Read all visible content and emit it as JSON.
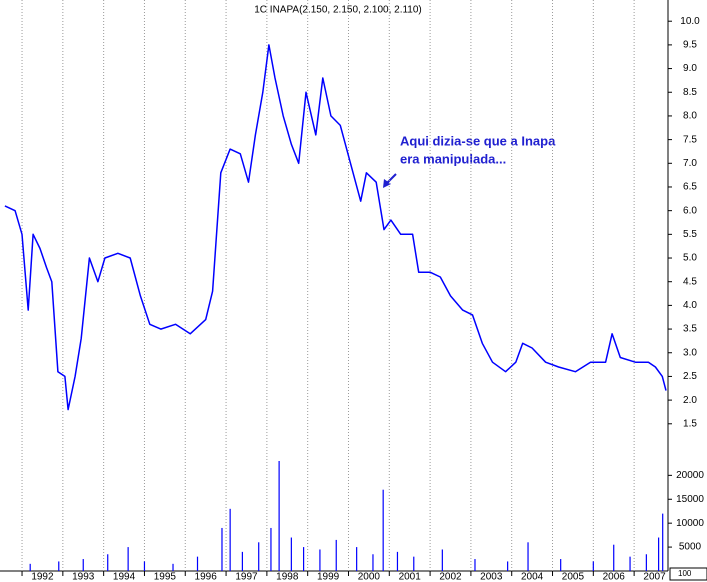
{
  "chart_data": [
    {
      "type": "line",
      "title": "1C INAPA(2.150, 2.150, 2.100, 2.110)",
      "annotation": [
        "Aqui dizia-se que a Inapa",
        "era manipulada..."
      ],
      "x": [
        1991.58,
        1991.83,
        1992.0,
        1992.15,
        1992.27,
        1992.44,
        1992.6,
        1992.73,
        1992.88,
        1993.05,
        1993.13,
        1993.3,
        1993.45,
        1993.65,
        1993.86,
        1994.03,
        1994.35,
        1994.65,
        1994.9,
        1995.13,
        1995.4,
        1995.76,
        1996.12,
        1996.5,
        1996.67,
        1996.87,
        1997.1,
        1997.35,
        1997.55,
        1997.72,
        1997.9,
        1998.05,
        1998.2,
        1998.4,
        1998.6,
        1998.78,
        1998.96,
        1999.2,
        1999.37,
        1999.57,
        1999.8,
        2000.05,
        2000.3,
        2000.44,
        2000.68,
        2000.87,
        2001.04,
        2001.28,
        2001.57,
        2001.72,
        2002.0,
        2002.25,
        2002.5,
        2002.8,
        2003.04,
        2003.28,
        2003.53,
        2003.85,
        2004.1,
        2004.27,
        2004.5,
        2004.83,
        2005.15,
        2005.56,
        2005.93,
        2006.3,
        2006.46,
        2006.66,
        2007.03,
        2007.35,
        2007.52,
        2007.69,
        2007.78
      ],
      "values": [
        6.1,
        6.0,
        5.5,
        3.9,
        5.5,
        5.2,
        4.8,
        4.5,
        2.6,
        2.5,
        1.8,
        2.5,
        3.3,
        5.0,
        4.5,
        5.0,
        5.1,
        5.0,
        4.2,
        3.6,
        3.5,
        3.6,
        3.4,
        3.7,
        4.3,
        6.8,
        7.3,
        7.2,
        6.6,
        7.6,
        8.5,
        9.5,
        8.8,
        8.0,
        7.4,
        7.0,
        8.5,
        7.6,
        8.8,
        8.0,
        7.8,
        7.0,
        6.2,
        6.8,
        6.6,
        5.6,
        5.8,
        5.5,
        5.5,
        4.7,
        4.7,
        4.6,
        4.2,
        3.9,
        3.8,
        3.2,
        2.8,
        2.6,
        2.8,
        3.2,
        3.1,
        2.8,
        2.7,
        2.6,
        2.8,
        2.8,
        3.4,
        2.9,
        2.8,
        2.8,
        2.7,
        2.5,
        2.2
      ],
      "color": "#0000ff",
      "xlim": [
        1991.46,
        2007.83
      ],
      "xticks": [
        1992,
        1993,
        1994,
        1995,
        1996,
        1997,
        1998,
        1999,
        2000,
        2001,
        2002,
        2003,
        2004,
        2005,
        2006,
        2007
      ],
      "ylim": [
        1.2,
        10.3
      ],
      "yticks": [
        {
          "value": 1.5,
          "label": "1.5"
        },
        {
          "value": 2,
          "label": "2.0"
        },
        {
          "value": 2.5,
          "label": "2.5"
        },
        {
          "value": 3,
          "label": "3.0"
        },
        {
          "value": 3.5,
          "label": "3.5"
        },
        {
          "value": 4,
          "label": "4.0"
        },
        {
          "value": 4.5,
          "label": "4.5"
        },
        {
          "value": 5,
          "label": "5.0"
        },
        {
          "value": 5.5,
          "label": "5.5"
        },
        {
          "value": 6,
          "label": "6.0"
        },
        {
          "value": 6.5,
          "label": "6.5"
        },
        {
          "value": 7,
          "label": "7.0"
        },
        {
          "value": 7.5,
          "label": "7.5"
        },
        {
          "value": 8,
          "label": "8.0"
        },
        {
          "value": 8.5,
          "label": "8.5"
        },
        {
          "value": 9,
          "label": "9.0"
        },
        {
          "value": 9.5,
          "label": "9.5"
        },
        {
          "value": 10,
          "label": "10.0"
        }
      ],
      "grid": true
    },
    {
      "type": "bar",
      "unit_label": "100",
      "x": [
        1992.2,
        1992.9,
        1993.5,
        1994.1,
        1994.6,
        1995.0,
        1995.7,
        1996.3,
        1996.9,
        1997.1,
        1997.4,
        1997.8,
        1998.1,
        1998.3,
        1998.6,
        1998.9,
        1999.3,
        1999.7,
        2000.2,
        2000.6,
        2000.85,
        2001.2,
        2001.6,
        2002.3,
        2003.1,
        2003.9,
        2004.4,
        2005.2,
        2006.0,
        2006.5,
        2006.9,
        2007.3,
        2007.6,
        2007.7
      ],
      "values": [
        1500,
        2000,
        2500,
        3500,
        5000,
        2000,
        1500,
        3000,
        9000,
        13000,
        4000,
        6000,
        9000,
        23000,
        7000,
        5000,
        4500,
        6500,
        5000,
        3500,
        17000,
        4000,
        3000,
        4500,
        2500,
        2000,
        6000,
        2500,
        2000,
        5500,
        3000,
        3500,
        7000,
        12000
      ],
      "color": "#0000ff",
      "ylim": [
        0,
        23000
      ],
      "yticks": [
        5000,
        10000,
        15000,
        20000
      ]
    }
  ]
}
